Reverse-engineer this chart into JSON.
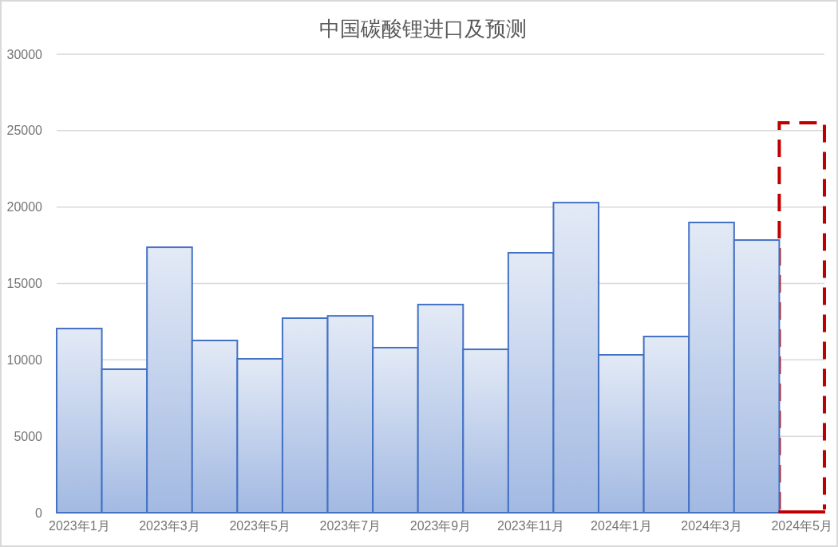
{
  "chart_data": {
    "type": "bar",
    "title": "中国碳酸锂进口及预测",
    "categories": [
      "2023年1月",
      null,
      "2023年3月",
      null,
      "2023年5月",
      null,
      "2023年7月",
      null,
      "2023年9月",
      null,
      "2023年11月",
      null,
      "2024年1月",
      null,
      "2024年3月",
      null,
      "2024年5月"
    ],
    "values": [
      12050,
      9390,
      17370,
      11270,
      10070,
      12730,
      12880,
      10800,
      13620,
      10690,
      17010,
      20290,
      10330,
      11530,
      18990,
      17840,
      100
    ],
    "colors": [
      "#4472c4",
      "#4472c4",
      "#4472c4",
      "#4472c4",
      "#4472c4",
      "#4472c4",
      "#4472c4",
      "#4472c4",
      "#4472c4",
      "#4472c4",
      "#4472c4",
      "#4472c4",
      "#4472c4",
      "#4472c4",
      "#4472c4",
      "#4472c4",
      "#c00000"
    ],
    "ylim": [
      0,
      30000
    ],
    "yticks": [
      0,
      5000,
      10000,
      15000,
      20000,
      25000,
      30000
    ],
    "grid": "y"
  }
}
